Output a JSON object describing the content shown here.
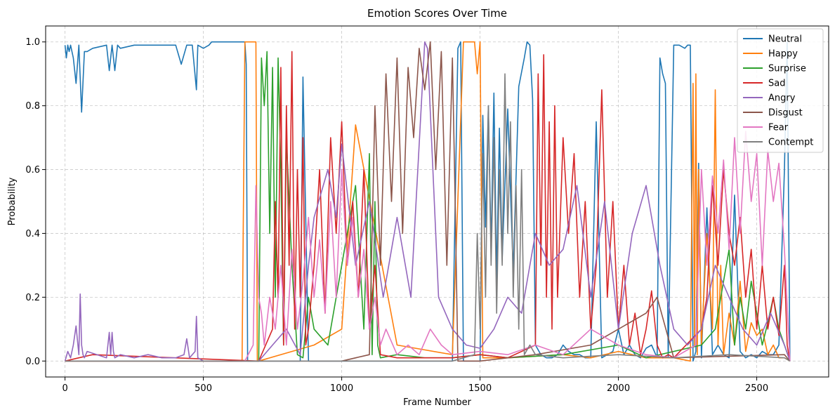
{
  "chart_data": {
    "type": "line",
    "title": "Emotion Scores Over Time",
    "xlabel": "Frame Number",
    "ylabel": "Probability",
    "xlim": [
      -70,
      2760
    ],
    "ylim": [
      -0.05,
      1.05
    ],
    "xticks": [
      0,
      500,
      1000,
      1500,
      2000,
      2500
    ],
    "yticks": [
      0.0,
      0.2,
      0.4,
      0.6,
      0.8,
      1.0
    ],
    "xtick_labels": [
      "0",
      "500",
      "1000",
      "1500",
      "2000",
      "2500"
    ],
    "ytick_labels": [
      "0.0",
      "0.2",
      "0.4",
      "0.6",
      "0.8",
      "1.0"
    ],
    "grid": true,
    "legend_position": "top-right",
    "series": [
      {
        "name": "Neutral",
        "color": "#1f77b4",
        "x": [
          0,
          5,
          10,
          15,
          20,
          30,
          40,
          50,
          60,
          70,
          80,
          100,
          150,
          160,
          170,
          180,
          190,
          200,
          250,
          300,
          350,
          400,
          420,
          440,
          460,
          475,
          480,
          500,
          520,
          530,
          550,
          600,
          650,
          655,
          660,
          700,
          750,
          800,
          850,
          860,
          880,
          900,
          950,
          1000,
          1050,
          1100,
          1150,
          1200,
          1250,
          1300,
          1350,
          1400,
          1420,
          1430,
          1440,
          1450,
          1460,
          1470,
          1480,
          1490,
          1500,
          1510,
          1520,
          1530,
          1540,
          1550,
          1560,
          1570,
          1580,
          1600,
          1620,
          1640,
          1660,
          1670,
          1680,
          1690,
          1700,
          1720,
          1740,
          1760,
          1780,
          1800,
          1820,
          1840,
          1860,
          1880,
          1900,
          1920,
          1940,
          1960,
          1980,
          2000,
          2020,
          2040,
          2060,
          2080,
          2100,
          2120,
          2140,
          2150,
          2160,
          2170,
          2180,
          2200,
          2220,
          2240,
          2250,
          2260,
          2270,
          2280,
          2290,
          2300,
          2320,
          2340,
          2360,
          2380,
          2400,
          2420,
          2440,
          2460,
          2480,
          2500,
          2520,
          2540,
          2560,
          2580,
          2600,
          2610,
          2620
        ],
        "values": [
          0.99,
          0.95,
          0.99,
          0.97,
          0.99,
          0.95,
          0.87,
          0.99,
          0.78,
          0.97,
          0.97,
          0.98,
          0.99,
          0.91,
          0.99,
          0.91,
          0.99,
          0.98,
          0.99,
          0.99,
          0.99,
          0.99,
          0.93,
          0.99,
          0.99,
          0.85,
          0.99,
          0.98,
          0.99,
          1.0,
          1.0,
          1.0,
          1.0,
          0.93,
          0.0,
          0.0,
          0.0,
          0.0,
          0.0,
          0.89,
          0.0,
          0.0,
          0.0,
          0.0,
          0.0,
          0.0,
          0.0,
          0.0,
          0.0,
          0.0,
          0.0,
          0.0,
          0.98,
          1.0,
          0.0,
          0.0,
          0.0,
          0.0,
          0.0,
          0.0,
          0.0,
          0.77,
          0.42,
          0.8,
          0.35,
          0.84,
          0.25,
          0.73,
          0.32,
          0.79,
          0.28,
          0.86,
          0.95,
          1.0,
          0.99,
          0.82,
          0.05,
          0.02,
          0.01,
          0.01,
          0.02,
          0.05,
          0.03,
          0.02,
          0.02,
          0.01,
          0.01,
          0.75,
          0.01,
          0.02,
          0.03,
          0.1,
          0.02,
          0.05,
          0.02,
          0.01,
          0.04,
          0.05,
          0.01,
          0.95,
          0.9,
          0.87,
          0.01,
          0.99,
          0.99,
          0.98,
          0.99,
          0.99,
          0.0,
          0.03,
          0.62,
          0.01,
          0.48,
          0.02,
          0.05,
          0.02,
          0.01,
          0.52,
          0.03,
          0.01,
          0.02,
          0.01,
          0.03,
          0.02,
          0.02,
          0.05,
          0.6,
          1.0,
          0.0
        ]
      },
      {
        "name": "Happy",
        "color": "#ff7f0e",
        "x": [
          0,
          640,
          650,
          655,
          690,
          695,
          700,
          900,
          1000,
          1050,
          1200,
          1400,
          1440,
          1445,
          1480,
          1490,
          1500,
          1510,
          1600,
          1800,
          1900,
          2000,
          2100,
          2200,
          2260,
          2270,
          2275,
          2280,
          2285,
          2290,
          2300,
          2320,
          2340,
          2350,
          2360,
          2370,
          2380,
          2400,
          2420,
          2440,
          2460,
          2480,
          2500,
          2520,
          2540,
          2560,
          2580,
          2600,
          2620
        ],
        "values": [
          0.0,
          0.0,
          1.0,
          1.0,
          1.0,
          0.0,
          0.0,
          0.05,
          0.1,
          0.74,
          0.05,
          0.02,
          1.0,
          1.0,
          1.0,
          0.9,
          1.0,
          0.01,
          0.01,
          0.02,
          0.01,
          0.03,
          0.01,
          0.01,
          0.0,
          0.87,
          0.05,
          0.9,
          0.02,
          0.6,
          0.05,
          0.4,
          0.1,
          0.85,
          0.05,
          0.3,
          0.02,
          0.15,
          0.05,
          0.25,
          0.03,
          0.12,
          0.08,
          0.1,
          0.02,
          0.05,
          0.01,
          0.01,
          0.0
        ]
      },
      {
        "name": "Surprise",
        "color": "#2ca02c",
        "x": [
          0,
          650,
          700,
          710,
          720,
          730,
          740,
          750,
          760,
          770,
          780,
          790,
          800,
          820,
          840,
          860,
          880,
          900,
          950,
          1000,
          1050,
          1080,
          1100,
          1110,
          1120,
          1130,
          1140,
          1200,
          1300,
          1400,
          1500,
          1600,
          1800,
          2000,
          2100,
          2300,
          2350,
          2400,
          2420,
          2440,
          2460,
          2480,
          2500,
          2520,
          2540,
          2560,
          2580,
          2600,
          2620
        ],
        "values": [
          0.0,
          0.0,
          0.0,
          0.95,
          0.8,
          0.97,
          0.4,
          0.92,
          0.2,
          0.95,
          0.6,
          0.05,
          0.7,
          0.3,
          0.02,
          0.01,
          0.2,
          0.1,
          0.05,
          0.3,
          0.55,
          0.1,
          0.65,
          0.02,
          0.5,
          0.05,
          0.01,
          0.02,
          0.01,
          0.01,
          0.02,
          0.01,
          0.02,
          0.05,
          0.01,
          0.05,
          0.1,
          0.35,
          0.05,
          0.2,
          0.1,
          0.25,
          0.15,
          0.05,
          0.12,
          0.2,
          0.1,
          0.05,
          0.0
        ]
      },
      {
        "name": "Sad",
        "color": "#d62728",
        "x": [
          0,
          50,
          100,
          700,
          750,
          760,
          770,
          780,
          790,
          800,
          810,
          820,
          830,
          840,
          850,
          860,
          870,
          880,
          900,
          920,
          940,
          960,
          980,
          1000,
          1020,
          1040,
          1060,
          1080,
          1100,
          1120,
          1140,
          1200,
          1400,
          1500,
          1600,
          1700,
          1710,
          1720,
          1730,
          1740,
          1750,
          1760,
          1770,
          1780,
          1800,
          1820,
          1840,
          1860,
          1880,
          1900,
          1920,
          1940,
          1960,
          1980,
          2000,
          2020,
          2040,
          2060,
          2080,
          2100,
          2120,
          2140,
          2160,
          2180,
          2200,
          2300,
          2320,
          2340,
          2360,
          2380,
          2400,
          2420,
          2440,
          2460,
          2480,
          2500,
          2520,
          2540,
          2560,
          2580,
          2600,
          2610,
          2620
        ],
        "values": [
          0.0,
          0.01,
          0.02,
          0.0,
          0.1,
          0.5,
          0.2,
          0.92,
          0.05,
          0.8,
          0.3,
          0.97,
          0.1,
          0.6,
          0.2,
          0.7,
          0.05,
          0.1,
          0.3,
          0.6,
          0.15,
          0.7,
          0.4,
          0.75,
          0.3,
          0.5,
          0.2,
          0.6,
          0.1,
          0.3,
          0.02,
          0.01,
          0.01,
          0.02,
          0.01,
          0.05,
          0.9,
          0.3,
          0.96,
          0.2,
          0.75,
          0.1,
          0.8,
          0.2,
          0.7,
          0.4,
          0.65,
          0.2,
          0.5,
          0.1,
          0.3,
          0.85,
          0.2,
          0.5,
          0.1,
          0.3,
          0.05,
          0.15,
          0.02,
          0.1,
          0.22,
          0.05,
          0.01,
          0.02,
          0.01,
          0.1,
          0.2,
          0.55,
          0.3,
          0.6,
          0.4,
          0.3,
          0.45,
          0.2,
          0.35,
          0.1,
          0.3,
          0.1,
          0.2,
          0.08,
          0.3,
          0.05,
          0.0
        ]
      },
      {
        "name": "Angry",
        "color": "#9467bd",
        "x": [
          0,
          10,
          20,
          30,
          40,
          50,
          55,
          60,
          65,
          70,
          80,
          150,
          160,
          165,
          170,
          175,
          180,
          200,
          250,
          300,
          350,
          400,
          430,
          440,
          450,
          470,
          475,
          480,
          500,
          650,
          700,
          750,
          800,
          850,
          880,
          900,
          950,
          980,
          1000,
          1050,
          1100,
          1150,
          1200,
          1250,
          1300,
          1310,
          1350,
          1400,
          1450,
          1500,
          1550,
          1600,
          1650,
          1700,
          1750,
          1800,
          1850,
          1900,
          1950,
          2000,
          2050,
          2100,
          2150,
          2200,
          2250,
          2300,
          2350,
          2400,
          2450,
          2500,
          2550,
          2600,
          2620
        ],
        "values": [
          0.0,
          0.03,
          0.01,
          0.05,
          0.11,
          0.02,
          0.21,
          0.05,
          0.02,
          0.01,
          0.03,
          0.01,
          0.09,
          0.02,
          0.09,
          0.03,
          0.01,
          0.02,
          0.01,
          0.02,
          0.01,
          0.01,
          0.02,
          0.07,
          0.01,
          0.03,
          0.14,
          0.01,
          0.0,
          0.0,
          0.0,
          0.05,
          0.1,
          0.02,
          0.3,
          0.45,
          0.6,
          0.45,
          0.68,
          0.3,
          0.5,
          0.2,
          0.45,
          0.2,
          1.0,
          0.98,
          0.2,
          0.1,
          0.05,
          0.04,
          0.1,
          0.2,
          0.15,
          0.4,
          0.3,
          0.35,
          0.55,
          0.2,
          0.5,
          0.1,
          0.4,
          0.55,
          0.3,
          0.1,
          0.05,
          0.1,
          0.3,
          0.2,
          0.1,
          0.05,
          0.15,
          0.05,
          0.0
        ]
      },
      {
        "name": "Disgust",
        "color": "#8c564b",
        "x": [
          0,
          1000,
          1100,
          1120,
          1140,
          1160,
          1180,
          1200,
          1220,
          1240,
          1260,
          1280,
          1300,
          1320,
          1340,
          1360,
          1380,
          1400,
          1410,
          1420,
          1500,
          1700,
          1900,
          2000,
          2100,
          2140,
          2200,
          2600,
          2620
        ],
        "values": [
          0.0,
          0.0,
          0.02,
          0.8,
          0.3,
          0.9,
          0.5,
          0.95,
          0.4,
          0.92,
          0.7,
          0.98,
          0.85,
          1.0,
          0.6,
          0.97,
          0.3,
          0.95,
          0.5,
          0.0,
          0.0,
          0.02,
          0.05,
          0.1,
          0.15,
          0.2,
          0.01,
          0.02,
          0.0
        ]
      },
      {
        "name": "Fear",
        "color": "#e377c2",
        "x": [
          0,
          650,
          680,
          690,
          700,
          710,
          720,
          740,
          760,
          780,
          800,
          820,
          840,
          860,
          880,
          900,
          920,
          940,
          960,
          980,
          1000,
          1020,
          1040,
          1060,
          1080,
          1100,
          1120,
          1140,
          1160,
          1200,
          1240,
          1280,
          1320,
          1360,
          1400,
          1500,
          1600,
          1700,
          1800,
          1900,
          2000,
          2100,
          2200,
          2280,
          2300,
          2320,
          2340,
          2360,
          2380,
          2400,
          2420,
          2440,
          2460,
          2480,
          2500,
          2520,
          2540,
          2560,
          2580,
          2600,
          2620
        ],
        "values": [
          0.0,
          0.0,
          0.05,
          0.55,
          0.2,
          0.15,
          0.05,
          0.2,
          0.1,
          0.3,
          0.05,
          0.35,
          0.1,
          0.25,
          0.45,
          0.2,
          0.38,
          0.15,
          0.5,
          0.2,
          0.6,
          0.3,
          0.45,
          0.2,
          0.35,
          0.1,
          0.2,
          0.05,
          0.1,
          0.02,
          0.05,
          0.02,
          0.1,
          0.05,
          0.02,
          0.03,
          0.02,
          0.05,
          0.02,
          0.1,
          0.05,
          0.02,
          0.01,
          0.05,
          0.6,
          0.3,
          0.58,
          0.4,
          0.63,
          0.35,
          0.7,
          0.4,
          0.72,
          0.5,
          0.65,
          0.3,
          0.66,
          0.5,
          0.62,
          0.35,
          0.0
        ]
      },
      {
        "name": "Contempt",
        "color": "#7f7f7f",
        "x": [
          0,
          1400,
          1480,
          1490,
          1500,
          1510,
          1520,
          1530,
          1540,
          1550,
          1560,
          1570,
          1580,
          1590,
          1600,
          1610,
          1620,
          1630,
          1640,
          1650,
          1660,
          1680,
          1700,
          1800,
          2000,
          2200,
          2400,
          2600,
          2620
        ],
        "values": [
          0.0,
          0.0,
          0.02,
          0.4,
          0.1,
          0.65,
          0.2,
          0.8,
          0.3,
          0.7,
          0.15,
          0.6,
          0.3,
          0.9,
          0.4,
          0.75,
          0.2,
          0.55,
          0.1,
          0.6,
          0.02,
          0.05,
          0.02,
          0.01,
          0.02,
          0.01,
          0.02,
          0.01,
          0.0
        ]
      }
    ]
  }
}
